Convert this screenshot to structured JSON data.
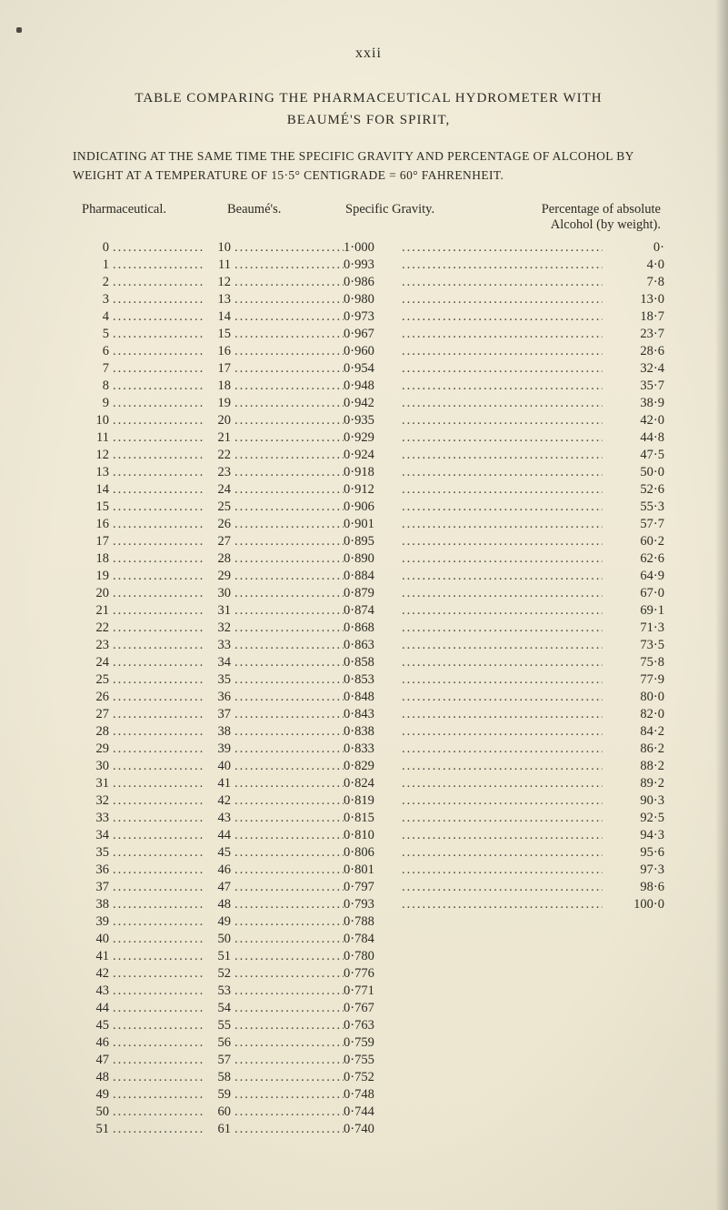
{
  "page_number_label": "xxii",
  "heading_line1": "TABLE COMPARING THE PHARMACEUTICAL HYDROMETER WITH",
  "heading_line2": "BEAUMÉ'S FOR SPIRIT,",
  "subheading": "INDICATING AT THE SAME TIME THE SPECIFIC GRAVITY AND PERCENTAGE OF ALCOHOL BY WEIGHT AT A TEMPERATURE OF 15·5° CENTIGRADE = 60° FAHRENHEIT.",
  "col_headers": {
    "pharmaceutical": "Pharmaceutical.",
    "beaume": "Beaumé's.",
    "specific_gravity": "Specific Gravity.",
    "alcohol_line1": "Percentage of absolute",
    "alcohol_line2": "Alcohol (by weight)."
  },
  "dot_leader": "........................................................",
  "colors": {
    "page_bg": "#f0ebd8",
    "text": "#2b2a24"
  },
  "rows": [
    {
      "i": "0",
      "b": "10",
      "sg": "1·000",
      "a": "0·"
    },
    {
      "i": "1",
      "b": "11",
      "sg": "0·993",
      "a": "4·0"
    },
    {
      "i": "2",
      "b": "12",
      "sg": "0·986",
      "a": "7·8"
    },
    {
      "i": "3",
      "b": "13",
      "sg": "0·980",
      "a": "13·0"
    },
    {
      "i": "4",
      "b": "14",
      "sg": "0·973",
      "a": "18·7"
    },
    {
      "i": "5",
      "b": "15",
      "sg": "0·967",
      "a": "23·7"
    },
    {
      "i": "6",
      "b": "16",
      "sg": "0·960",
      "a": "28·6"
    },
    {
      "i": "7",
      "b": "17",
      "sg": "0·954",
      "a": "32·4"
    },
    {
      "i": "8",
      "b": "18",
      "sg": "0·948",
      "a": "35·7"
    },
    {
      "i": "9",
      "b": "19",
      "sg": "0·942",
      "a": "38·9"
    },
    {
      "i": "10",
      "b": "20",
      "sg": "0·935",
      "a": "42·0"
    },
    {
      "i": "11",
      "b": "21",
      "sg": "0·929",
      "a": "44·8"
    },
    {
      "i": "12",
      "b": "22",
      "sg": "0·924",
      "a": "47·5"
    },
    {
      "i": "13",
      "b": "23",
      "sg": "0·918",
      "a": "50·0"
    },
    {
      "i": "14",
      "b": "24",
      "sg": "0·912",
      "a": "52·6"
    },
    {
      "i": "15",
      "b": "25",
      "sg": "0·906",
      "a": "55·3"
    },
    {
      "i": "16",
      "b": "26",
      "sg": "0·901",
      "a": "57·7"
    },
    {
      "i": "17",
      "b": "27",
      "sg": "0·895",
      "a": "60·2"
    },
    {
      "i": "18",
      "b": "28",
      "sg": "0·890",
      "a": "62·6"
    },
    {
      "i": "19",
      "b": "29",
      "sg": "0·884",
      "a": "64·9"
    },
    {
      "i": "20",
      "b": "30",
      "sg": "0·879",
      "a": "67·0"
    },
    {
      "i": "21",
      "b": "31",
      "sg": "0·874",
      "a": "69·1"
    },
    {
      "i": "22",
      "b": "32",
      "sg": "0·868",
      "a": "71·3"
    },
    {
      "i": "23",
      "b": "33",
      "sg": "0·863",
      "a": "73·5"
    },
    {
      "i": "24",
      "b": "34",
      "sg": "0·858",
      "a": "75·8"
    },
    {
      "i": "25",
      "b": "35",
      "sg": "0·853",
      "a": "77·9"
    },
    {
      "i": "26",
      "b": "36",
      "sg": "0·848",
      "a": "80·0"
    },
    {
      "i": "27",
      "b": "37",
      "sg": "0·843",
      "a": "82·0"
    },
    {
      "i": "28",
      "b": "38",
      "sg": "0·838",
      "a": "84·2"
    },
    {
      "i": "29",
      "b": "39",
      "sg": "0·833",
      "a": "86·2"
    },
    {
      "i": "30",
      "b": "40",
      "sg": "0·829",
      "a": "88·2"
    },
    {
      "i": "31",
      "b": "41",
      "sg": "0·824",
      "a": "89·2"
    },
    {
      "i": "32",
      "b": "42",
      "sg": "0·819",
      "a": "90·3"
    },
    {
      "i": "33",
      "b": "43",
      "sg": "0·815",
      "a": "92·5"
    },
    {
      "i": "34",
      "b": "44",
      "sg": "0·810",
      "a": "94·3"
    },
    {
      "i": "35",
      "b": "45",
      "sg": "0·806",
      "a": "95·6"
    },
    {
      "i": "36",
      "b": "46",
      "sg": "0·801",
      "a": "97·3"
    },
    {
      "i": "37",
      "b": "47",
      "sg": "0·797",
      "a": "98·6"
    },
    {
      "i": "38",
      "b": "48",
      "sg": "0·793",
      "a": "100·0"
    },
    {
      "i": "39",
      "b": "49",
      "sg": "0·788",
      "a": ""
    },
    {
      "i": "40",
      "b": "50",
      "sg": "0·784",
      "a": ""
    },
    {
      "i": "41",
      "b": "51",
      "sg": "0·780",
      "a": ""
    },
    {
      "i": "42",
      "b": "52",
      "sg": "0·776",
      "a": ""
    },
    {
      "i": "43",
      "b": "53",
      "sg": "0·771",
      "a": ""
    },
    {
      "i": "44",
      "b": "54",
      "sg": "0·767",
      "a": ""
    },
    {
      "i": "45",
      "b": "55",
      "sg": "0·763",
      "a": ""
    },
    {
      "i": "46",
      "b": "56",
      "sg": "0·759",
      "a": ""
    },
    {
      "i": "47",
      "b": "57",
      "sg": "0·755",
      "a": ""
    },
    {
      "i": "48",
      "b": "58",
      "sg": "0·752",
      "a": ""
    },
    {
      "i": "49",
      "b": "59",
      "sg": "0·748",
      "a": ""
    },
    {
      "i": "50",
      "b": "60",
      "sg": "0·744",
      "a": ""
    },
    {
      "i": "51",
      "b": "61",
      "sg": "0·740",
      "a": ""
    }
  ]
}
